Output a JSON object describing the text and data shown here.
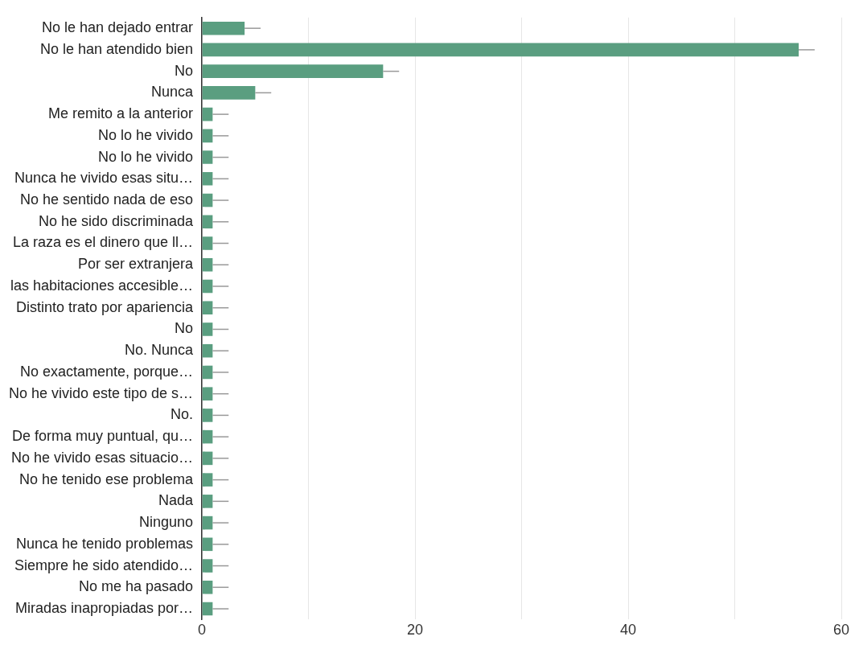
{
  "chart_data": {
    "type": "bar",
    "orientation": "horizontal",
    "categories": [
      "No le han dejado entrar",
      "No le han atendido bien",
      "No",
      "Nunca",
      "Me remito a la anterior",
      "No lo he vivido",
      "No lo he vivido",
      "Nunca he vivido esas situ…",
      "No he sentido nada de eso",
      "No he sido discriminada",
      "La raza es el dinero que ll…",
      "Por ser extranjera",
      "las habitaciones accesible…",
      "Distinto trato por apariencia",
      "No",
      "No. Nunca",
      "No exactamente, porque…",
      "No he vivido este tipo de s…",
      "No.",
      "De forma muy puntual, qu…",
      "No he vivido esas situacio…",
      "No he tenido ese problema",
      "Nada",
      "Ninguno",
      "Nunca he tenido problemas",
      "Siempre he sido atendido…",
      "No me ha pasado",
      "Miradas inapropiadas por…"
    ],
    "values": [
      4,
      56,
      17,
      5,
      1,
      1,
      1,
      1,
      1,
      1,
      1,
      1,
      1,
      1,
      1,
      1,
      1,
      1,
      1,
      1,
      1,
      1,
      1,
      1,
      1,
      1,
      1,
      1
    ],
    "errors": [
      [
        4,
        5.5
      ],
      [
        56,
        57.5
      ],
      [
        17,
        18.5
      ],
      [
        5,
        6.5
      ],
      [
        1,
        2.5
      ],
      [
        1,
        2.5
      ],
      [
        1,
        2.5
      ],
      [
        1,
        2.5
      ],
      [
        1,
        2.5
      ],
      [
        1,
        2.5
      ],
      [
        1,
        2.5
      ],
      [
        1,
        2.5
      ],
      [
        1,
        2.5
      ],
      [
        1,
        2.5
      ],
      [
        1,
        2.5
      ],
      [
        1,
        2.5
      ],
      [
        1,
        2.5
      ],
      [
        1,
        2.5
      ],
      [
        1,
        2.5
      ],
      [
        1,
        2.5
      ],
      [
        1,
        2.5
      ],
      [
        1,
        2.5
      ],
      [
        1,
        2.5
      ],
      [
        1,
        2.5
      ],
      [
        1,
        2.5
      ],
      [
        1,
        2.5
      ],
      [
        1,
        2.5
      ],
      [
        1,
        2.5
      ]
    ],
    "color": "#5a9e80",
    "xlim": [
      0,
      60
    ],
    "xticks": [
      0,
      {
        "value": 10,
        "label": null
      },
      20,
      {
        "value": 30,
        "label": null
      },
      40,
      {
        "value": 50,
        "label": null
      },
      60
    ],
    "grid": "x",
    "legend": false
  }
}
